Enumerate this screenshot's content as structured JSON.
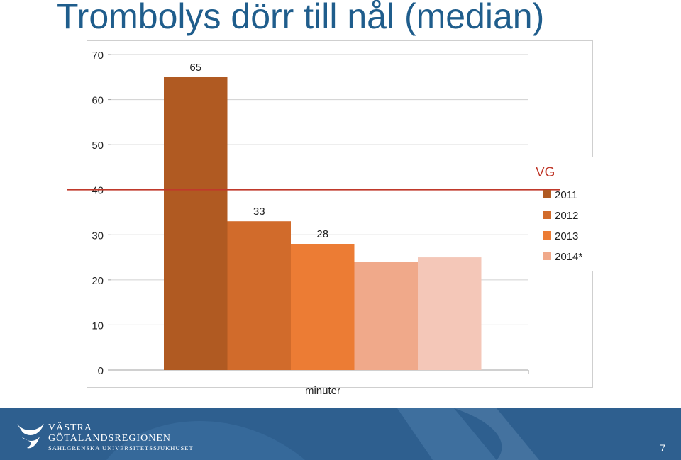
{
  "page": {
    "title": "Trombolys dörr till nål (median)",
    "page_number": "7",
    "logo": {
      "line1": "VÄSTRA",
      "line2": "GÖTALANDSREGIONEN",
      "line3": "SAHLGRENSKA UNIVERSITETSSJUKHUSET"
    }
  },
  "chart_data": {
    "type": "bar",
    "title": "Trombolys dörr till nål (median)",
    "xlabel": "minuter",
    "ylabel": "",
    "ylim": [
      0,
      70
    ],
    "yticks": [
      0,
      10,
      20,
      30,
      40,
      50,
      60,
      70
    ],
    "grid": true,
    "legend_position": "right",
    "legend_title": "VG",
    "categories": [
      "minuter"
    ],
    "series": [
      {
        "name": "2011",
        "values": [
          65
        ],
        "color": "#b05a22",
        "label": "65"
      },
      {
        "name": "2012",
        "values": [
          33
        ],
        "color": "#d16b2b",
        "label": "33"
      },
      {
        "name": "2013",
        "values": [
          28
        ],
        "color": "#ec7c34",
        "label": "28"
      },
      {
        "name": "2014*",
        "values": [
          24
        ],
        "color": "#f0a98a",
        "label": ""
      },
      {
        "name": "",
        "values": [
          25
        ],
        "color": "#f4c7b8",
        "label": ""
      }
    ],
    "reference_line": {
      "value": 40,
      "color": "#c0392b"
    }
  },
  "colors": {
    "title": "#1f5d8c",
    "legend_title": "#c0392b",
    "footer": "#2e5f8f"
  }
}
